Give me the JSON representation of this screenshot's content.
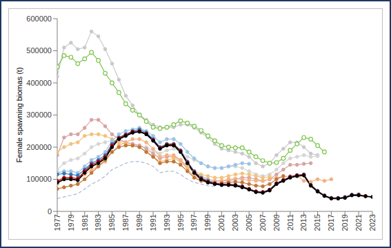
{
  "chart_data": {
    "type": "line",
    "y_label": "Female spawning biomas (t)",
    "grid": false,
    "x": [
      1977,
      1978,
      1979,
      1980,
      1981,
      1982,
      1983,
      1984,
      1985,
      1986,
      1987,
      1988,
      1989,
      1990,
      1991,
      1992,
      1993,
      1994,
      1995,
      1996,
      1997,
      1998,
      1999,
      2000,
      2001,
      2002,
      2003,
      2004,
      2005,
      2006,
      2007,
      2008,
      2009,
      2010,
      2011,
      2012,
      2013,
      2014,
      2015,
      2016,
      2017,
      2018,
      2019,
      2020,
      2021,
      2022,
      2023
    ],
    "xlim": [
      1977,
      2023
    ],
    "xticks": [
      1977,
      1979,
      1981,
      1983,
      1985,
      1987,
      1989,
      1991,
      1993,
      1995,
      1997,
      1999,
      2001,
      2003,
      2005,
      2007,
      2009,
      2011,
      2013,
      2015,
      2017,
      2019,
      2021,
      2023
    ],
    "ylim": [
      0,
      600000
    ],
    "yticks": [
      0,
      100000,
      200000,
      300000,
      400000,
      500000,
      600000
    ],
    "series": [
      {
        "color": "#c9c9c9",
        "marker": "circle",
        "line_style": "solid",
        "values": [
          420000,
          510000,
          525000,
          505000,
          510000,
          560000,
          545000,
          505000,
          460000,
          410000,
          360000,
          330000,
          300000,
          285000,
          270000,
          262000,
          260000,
          262000,
          270000,
          270000,
          260000,
          245000,
          230000,
          210000,
          195000,
          190000,
          185000,
          180000,
          170000,
          150000,
          140000,
          150000,
          175000,
          195000,
          215000,
          215000,
          200000,
          180000,
          175000,
          null,
          null,
          null,
          null,
          null,
          null,
          null,
          null
        ]
      },
      {
        "color": "#d6d6d6",
        "marker": "circle",
        "line_style": "solid",
        "values": [
          130000,
          150000,
          160000,
          165000,
          180000,
          200000,
          210000,
          215000,
          220000,
          220000,
          215000,
          210000,
          205000,
          200000,
          190000,
          180000,
          190000,
          195000,
          185000,
          170000,
          160000,
          150000,
          140000,
          135000,
          135000,
          140000,
          140000,
          135000,
          125000,
          115000,
          110000,
          115000,
          130000,
          150000,
          165000,
          170000,
          175000,
          170000,
          172000,
          null,
          null,
          null,
          null,
          null,
          null,
          null,
          null
        ]
      },
      {
        "color": "#a9b6d9",
        "marker": "none",
        "line_style": "dashed",
        "values": [
          40000,
          45000,
          50000,
          55000,
          70000,
          85000,
          95000,
          110000,
          130000,
          140000,
          150000,
          155000,
          155000,
          150000,
          140000,
          120000,
          125000,
          125000,
          115000,
          100000,
          90000,
          85000,
          80000,
          78000,
          null,
          null,
          null,
          null,
          null,
          null,
          null,
          null,
          null,
          null,
          null,
          null,
          null,
          null,
          null,
          null,
          null,
          null,
          null,
          null,
          null,
          null,
          null
        ]
      },
      {
        "color": "#d9a3a3",
        "marker": "circle",
        "line_style": "solid",
        "values": [
          175000,
          230000,
          240000,
          240000,
          260000,
          285000,
          285000,
          265000,
          240000,
          225000,
          215000,
          210000,
          205000,
          195000,
          180000,
          165000,
          170000,
          170000,
          160000,
          140000,
          120000,
          110000,
          100000,
          95000,
          95000,
          95000,
          100000,
          105000,
          105000,
          100000,
          95000,
          100000,
          115000,
          130000,
          145000,
          145000,
          148000,
          150000,
          null,
          null,
          null,
          null,
          null,
          null,
          null,
          null,
          null
        ]
      },
      {
        "color": "#f2c37a",
        "marker": "circle",
        "line_style": "solid",
        "values": [
          185000,
          200000,
          210000,
          215000,
          235000,
          240000,
          240000,
          235000,
          225000,
          215000,
          210000,
          205000,
          200000,
          185000,
          170000,
          155000,
          160000,
          165000,
          155000,
          140000,
          125000,
          115000,
          110000,
          105000,
          105000,
          110000,
          115000,
          118000,
          115000,
          110000,
          105000,
          108000,
          null,
          null,
          null,
          null,
          null,
          null,
          null,
          null,
          null,
          null,
          null,
          null,
          null,
          null,
          null
        ]
      },
      {
        "color": "#f4b183",
        "marker": "circle",
        "line_style": "solid",
        "values": [
          85000,
          100000,
          100000,
          100000,
          115000,
          130000,
          140000,
          155000,
          185000,
          205000,
          215000,
          225000,
          225000,
          215000,
          195000,
          170000,
          175000,
          175000,
          160000,
          130000,
          110000,
          100000,
          95000,
          93000,
          95000,
          100000,
          102000,
          100000,
          97000,
          95000,
          95000,
          100000,
          105000,
          108000,
          110000,
          112000,
          95000,
          92000,
          100000,
          95000,
          100000,
          null,
          null,
          null,
          null,
          null,
          null
        ]
      },
      {
        "color": "#c0773a",
        "marker": "circle",
        "line_style": "solid",
        "values": [
          70000,
          75000,
          80000,
          85000,
          100000,
          120000,
          140000,
          160000,
          185000,
          200000,
          205000,
          205000,
          200000,
          185000,
          170000,
          150000,
          155000,
          155000,
          145000,
          125000,
          105000,
          95000,
          90000,
          88000,
          88000,
          90000,
          92000,
          90000,
          85000,
          80000,
          78000,
          85000,
          100000,
          110000,
          null,
          null,
          null,
          null,
          null,
          null,
          null,
          null,
          null,
          null,
          null,
          null,
          null
        ]
      },
      {
        "color": "#9dc3e6",
        "marker": "circle",
        "line_style": "solid",
        "values": [
          120000,
          125000,
          125000,
          120000,
          140000,
          160000,
          170000,
          185000,
          220000,
          240000,
          250000,
          255000,
          260000,
          250000,
          235000,
          215000,
          225000,
          225000,
          210000,
          185000,
          165000,
          150000,
          140000,
          135000,
          135000,
          140000,
          145000,
          150000,
          148000,
          null,
          null,
          null,
          null,
          null,
          null,
          null,
          null,
          null,
          null,
          null,
          null,
          null,
          null,
          null,
          null,
          null,
          null
        ]
      },
      {
        "color": "#7cc44a",
        "marker": "hollow_circle",
        "line_style": "solid",
        "values": [
          450000,
          485000,
          480000,
          460000,
          475000,
          495000,
          470000,
          430000,
          400000,
          370000,
          335000,
          315000,
          300000,
          280000,
          262000,
          258000,
          262000,
          270000,
          282000,
          275000,
          265000,
          252000,
          235000,
          220000,
          205000,
          200000,
          198000,
          198000,
          185000,
          170000,
          158000,
          150000,
          152000,
          165000,
          190000,
          210000,
          230000,
          225000,
          205000,
          185000,
          null,
          null,
          null,
          null,
          null,
          null,
          null
        ]
      },
      {
        "color": "#2e75b6",
        "marker": "circle",
        "line_style": "solid",
        "values": [
          115000,
          118000,
          115000,
          112000,
          130000,
          150000,
          160000,
          175000,
          210000,
          230000,
          240000,
          250000,
          255000,
          245000,
          225000,
          200000,
          210000,
          210000,
          190000,
          155000,
          125000,
          105000,
          95000,
          88000,
          85000,
          85000,
          83000,
          78000,
          70000,
          62000,
          60000,
          68000,
          88000,
          98000,
          108000,
          113000,
          115000,
          83000,
          64000,
          50000,
          42000,
          42000,
          45000,
          52000,
          53000,
          null,
          null
        ]
      },
      {
        "color": "#c00000",
        "marker": "circle",
        "line_style": "solid",
        "values": [
          95000,
          105000,
          105000,
          102000,
          125000,
          145000,
          155000,
          170000,
          205000,
          228000,
          238000,
          248000,
          250000,
          242000,
          222000,
          198000,
          208000,
          208000,
          188000,
          152000,
          122000,
          102000,
          92000,
          87000,
          84000,
          84000,
          82000,
          77000,
          70000,
          62000,
          60000,
          67000,
          87000,
          97000,
          107000,
          112000,
          114000,
          82000,
          63000,
          49000,
          41000,
          41000,
          43000,
          51000,
          51000,
          48000,
          null
        ]
      },
      {
        "color": "#000000",
        "marker": "circle",
        "line_style": "solid",
        "values": [
          90000,
          100000,
          100000,
          97000,
          120000,
          140000,
          150000,
          165000,
          200000,
          225000,
          235000,
          245000,
          248000,
          240000,
          220000,
          195000,
          205000,
          205000,
          185000,
          150000,
          120000,
          100000,
          90000,
          85000,
          82000,
          82000,
          80000,
          75000,
          68000,
          60000,
          58000,
          65000,
          85000,
          95000,
          105000,
          110000,
          112000,
          80000,
          62000,
          48000,
          40000,
          40000,
          42000,
          50000,
          50000,
          47000,
          45000
        ]
      }
    ]
  }
}
